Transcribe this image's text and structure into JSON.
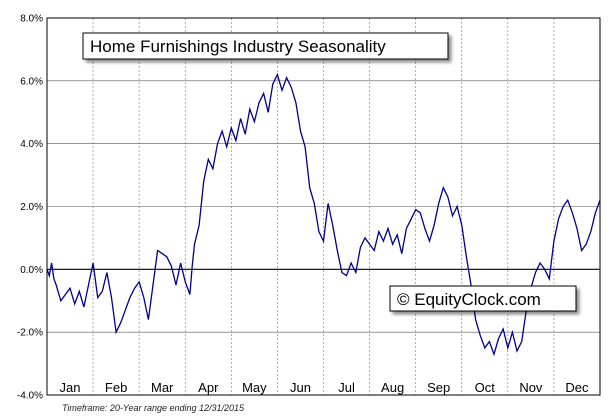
{
  "chart_data": {
    "type": "line",
    "title": "Home Furnishings Industry Seasonality",
    "watermark": "© EquityClock.com",
    "footnote": "Timeframe: 20-Year range ending 12/31/2015",
    "xlabel": "",
    "ylabel": "",
    "ylim": [
      -4,
      8
    ],
    "y_ticks": [
      "8.0%",
      "6.0%",
      "4.0%",
      "2.0%",
      "0.0%",
      "-2.0%",
      "-4.0%"
    ],
    "categories": [
      "Jan",
      "Feb",
      "Mar",
      "Apr",
      "May",
      "Jun",
      "Jul",
      "Aug",
      "Sep",
      "Oct",
      "Nov",
      "Dec"
    ],
    "grid": true,
    "line_color": "#00008B",
    "series": [
      {
        "x": [
          0.0,
          0.05,
          0.1,
          0.15,
          0.2,
          0.3,
          0.4,
          0.5,
          0.6,
          0.7,
          0.8,
          0.9,
          1.0,
          1.1,
          1.2,
          1.3,
          1.4,
          1.5,
          1.6,
          1.7,
          1.8,
          1.9,
          2.0,
          2.1,
          2.2,
          2.3,
          2.4,
          2.5,
          2.6,
          2.7,
          2.8,
          2.9,
          3.0,
          3.1,
          3.15,
          3.2,
          3.3,
          3.4,
          3.5,
          3.6,
          3.7,
          3.8,
          3.9,
          4.0,
          4.1,
          4.2,
          4.3,
          4.4,
          4.5,
          4.6,
          4.7,
          4.8,
          4.9,
          5.0,
          5.1,
          5.2,
          5.3,
          5.4,
          5.5,
          5.6,
          5.7,
          5.8,
          5.9,
          6.0,
          6.1,
          6.2,
          6.3,
          6.4,
          6.5,
          6.6,
          6.7,
          6.8,
          6.9,
          7.0,
          7.1,
          7.2,
          7.3,
          7.4,
          7.5,
          7.6,
          7.7,
          7.8,
          7.9,
          8.0,
          8.1,
          8.2,
          8.3,
          8.4,
          8.5,
          8.6,
          8.7,
          8.8,
          8.9,
          9.0,
          9.1,
          9.2,
          9.3,
          9.4,
          9.5,
          9.6,
          9.7,
          9.8,
          9.9,
          10.0,
          10.1,
          10.2,
          10.3,
          10.4,
          10.5,
          10.6,
          10.7,
          10.8,
          10.9,
          11.0,
          11.1,
          11.2,
          11.3,
          11.4,
          11.5,
          11.6,
          11.7,
          11.8,
          11.9,
          12.0
        ],
        "values": [
          0.0,
          -0.2,
          0.2,
          -0.3,
          -0.5,
          -1.0,
          -0.8,
          -0.6,
          -1.1,
          -0.7,
          -1.2,
          -0.5,
          0.2,
          -0.9,
          -0.7,
          -0.1,
          -0.9,
          -2.0,
          -1.7,
          -1.3,
          -0.9,
          -0.6,
          -0.4,
          -0.9,
          -1.6,
          -0.5,
          0.6,
          0.5,
          0.4,
          0.1,
          -0.5,
          0.2,
          -0.4,
          -0.8,
          0.1,
          0.8,
          1.4,
          2.8,
          3.5,
          3.2,
          4.0,
          4.4,
          3.9,
          4.5,
          4.1,
          4.8,
          4.3,
          5.1,
          4.7,
          5.3,
          5.6,
          5.0,
          5.9,
          6.2,
          5.7,
          6.1,
          5.8,
          5.3,
          4.4,
          3.9,
          2.6,
          2.1,
          1.2,
          0.9,
          2.1,
          1.4,
          0.6,
          -0.1,
          -0.2,
          0.2,
          -0.1,
          0.7,
          1.0,
          0.8,
          0.6,
          1.2,
          0.9,
          1.3,
          0.8,
          1.1,
          0.5,
          1.3,
          1.6,
          1.9,
          1.8,
          1.3,
          0.9,
          1.4,
          2.1,
          2.6,
          2.3,
          1.7,
          2.0,
          1.4,
          0.4,
          -0.5,
          -1.6,
          -2.1,
          -2.5,
          -2.3,
          -2.7,
          -2.2,
          -1.9,
          -2.5,
          -2.0,
          -2.6,
          -2.3,
          -1.3,
          -0.6,
          -0.1,
          0.2,
          0.0,
          -0.3,
          0.9,
          1.6,
          2.0,
          2.2,
          1.8,
          1.3,
          0.6,
          0.8,
          1.2,
          1.8,
          2.2
        ]
      }
    ]
  }
}
